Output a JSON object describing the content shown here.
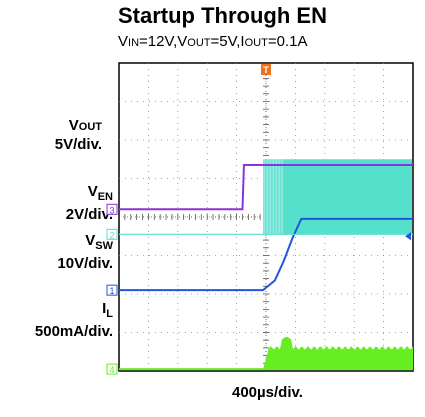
{
  "chart_data": {
    "type": "line",
    "title": "Startup Through EN",
    "subtitle": {
      "vin_label": "V",
      "vin_sub": "IN",
      "vin_val": "=12V,",
      "vout_label": "V",
      "vout_sub": "OUT",
      "vout_val": "=5V,",
      "iout_label": "I",
      "iout_sub": "OUT",
      "iout_val": "=0.1A"
    },
    "xlabel": "400µs/div.",
    "divisions": {
      "x": 10,
      "y": 8
    },
    "trigger_marker": "T",
    "series": [
      {
        "name_main": "V",
        "name_sub": "OUT",
        "scale": "5V/div.",
        "marker": "1",
        "color": "#2255dd",
        "ref_div": 2.1,
        "x_div": [
          0,
          4.9,
          5.3,
          5.6,
          5.9,
          6.2,
          10
        ],
        "y_div": [
          2.1,
          2.1,
          2.35,
          2.85,
          3.45,
          3.95,
          3.95
        ]
      },
      {
        "name_main": "V",
        "name_sub": "EN",
        "scale": "2V/div.",
        "marker": "3",
        "color": "#8833dd",
        "ref_div": 4.2,
        "x_div": [
          0,
          4.2,
          4.25,
          10
        ],
        "y_div": [
          4.2,
          4.2,
          5.35,
          5.35
        ]
      },
      {
        "name_main": "V",
        "name_sub": "SW",
        "scale": "10V/div.",
        "marker": "2",
        "color": "#55e0cc",
        "ref_div": 3.55,
        "x_div": [
          0,
          4.9,
          10
        ],
        "y_div": [
          3.55,
          3.55,
          3.55
        ],
        "switching": {
          "start_div": 4.9,
          "high_div": 5.5
        }
      },
      {
        "name_main": "I",
        "name_sub": "L",
        "scale": "500mA/div.",
        "marker": "4",
        "color": "#66ee22",
        "ref_div": 0.05,
        "x_div": [
          0,
          4.9,
          10
        ],
        "y_div": [
          0.05,
          0.05,
          0.05
        ],
        "ripple": {
          "start_div": 4.9,
          "avg_div": 0.6,
          "peak_div": 0.9
        }
      }
    ]
  }
}
